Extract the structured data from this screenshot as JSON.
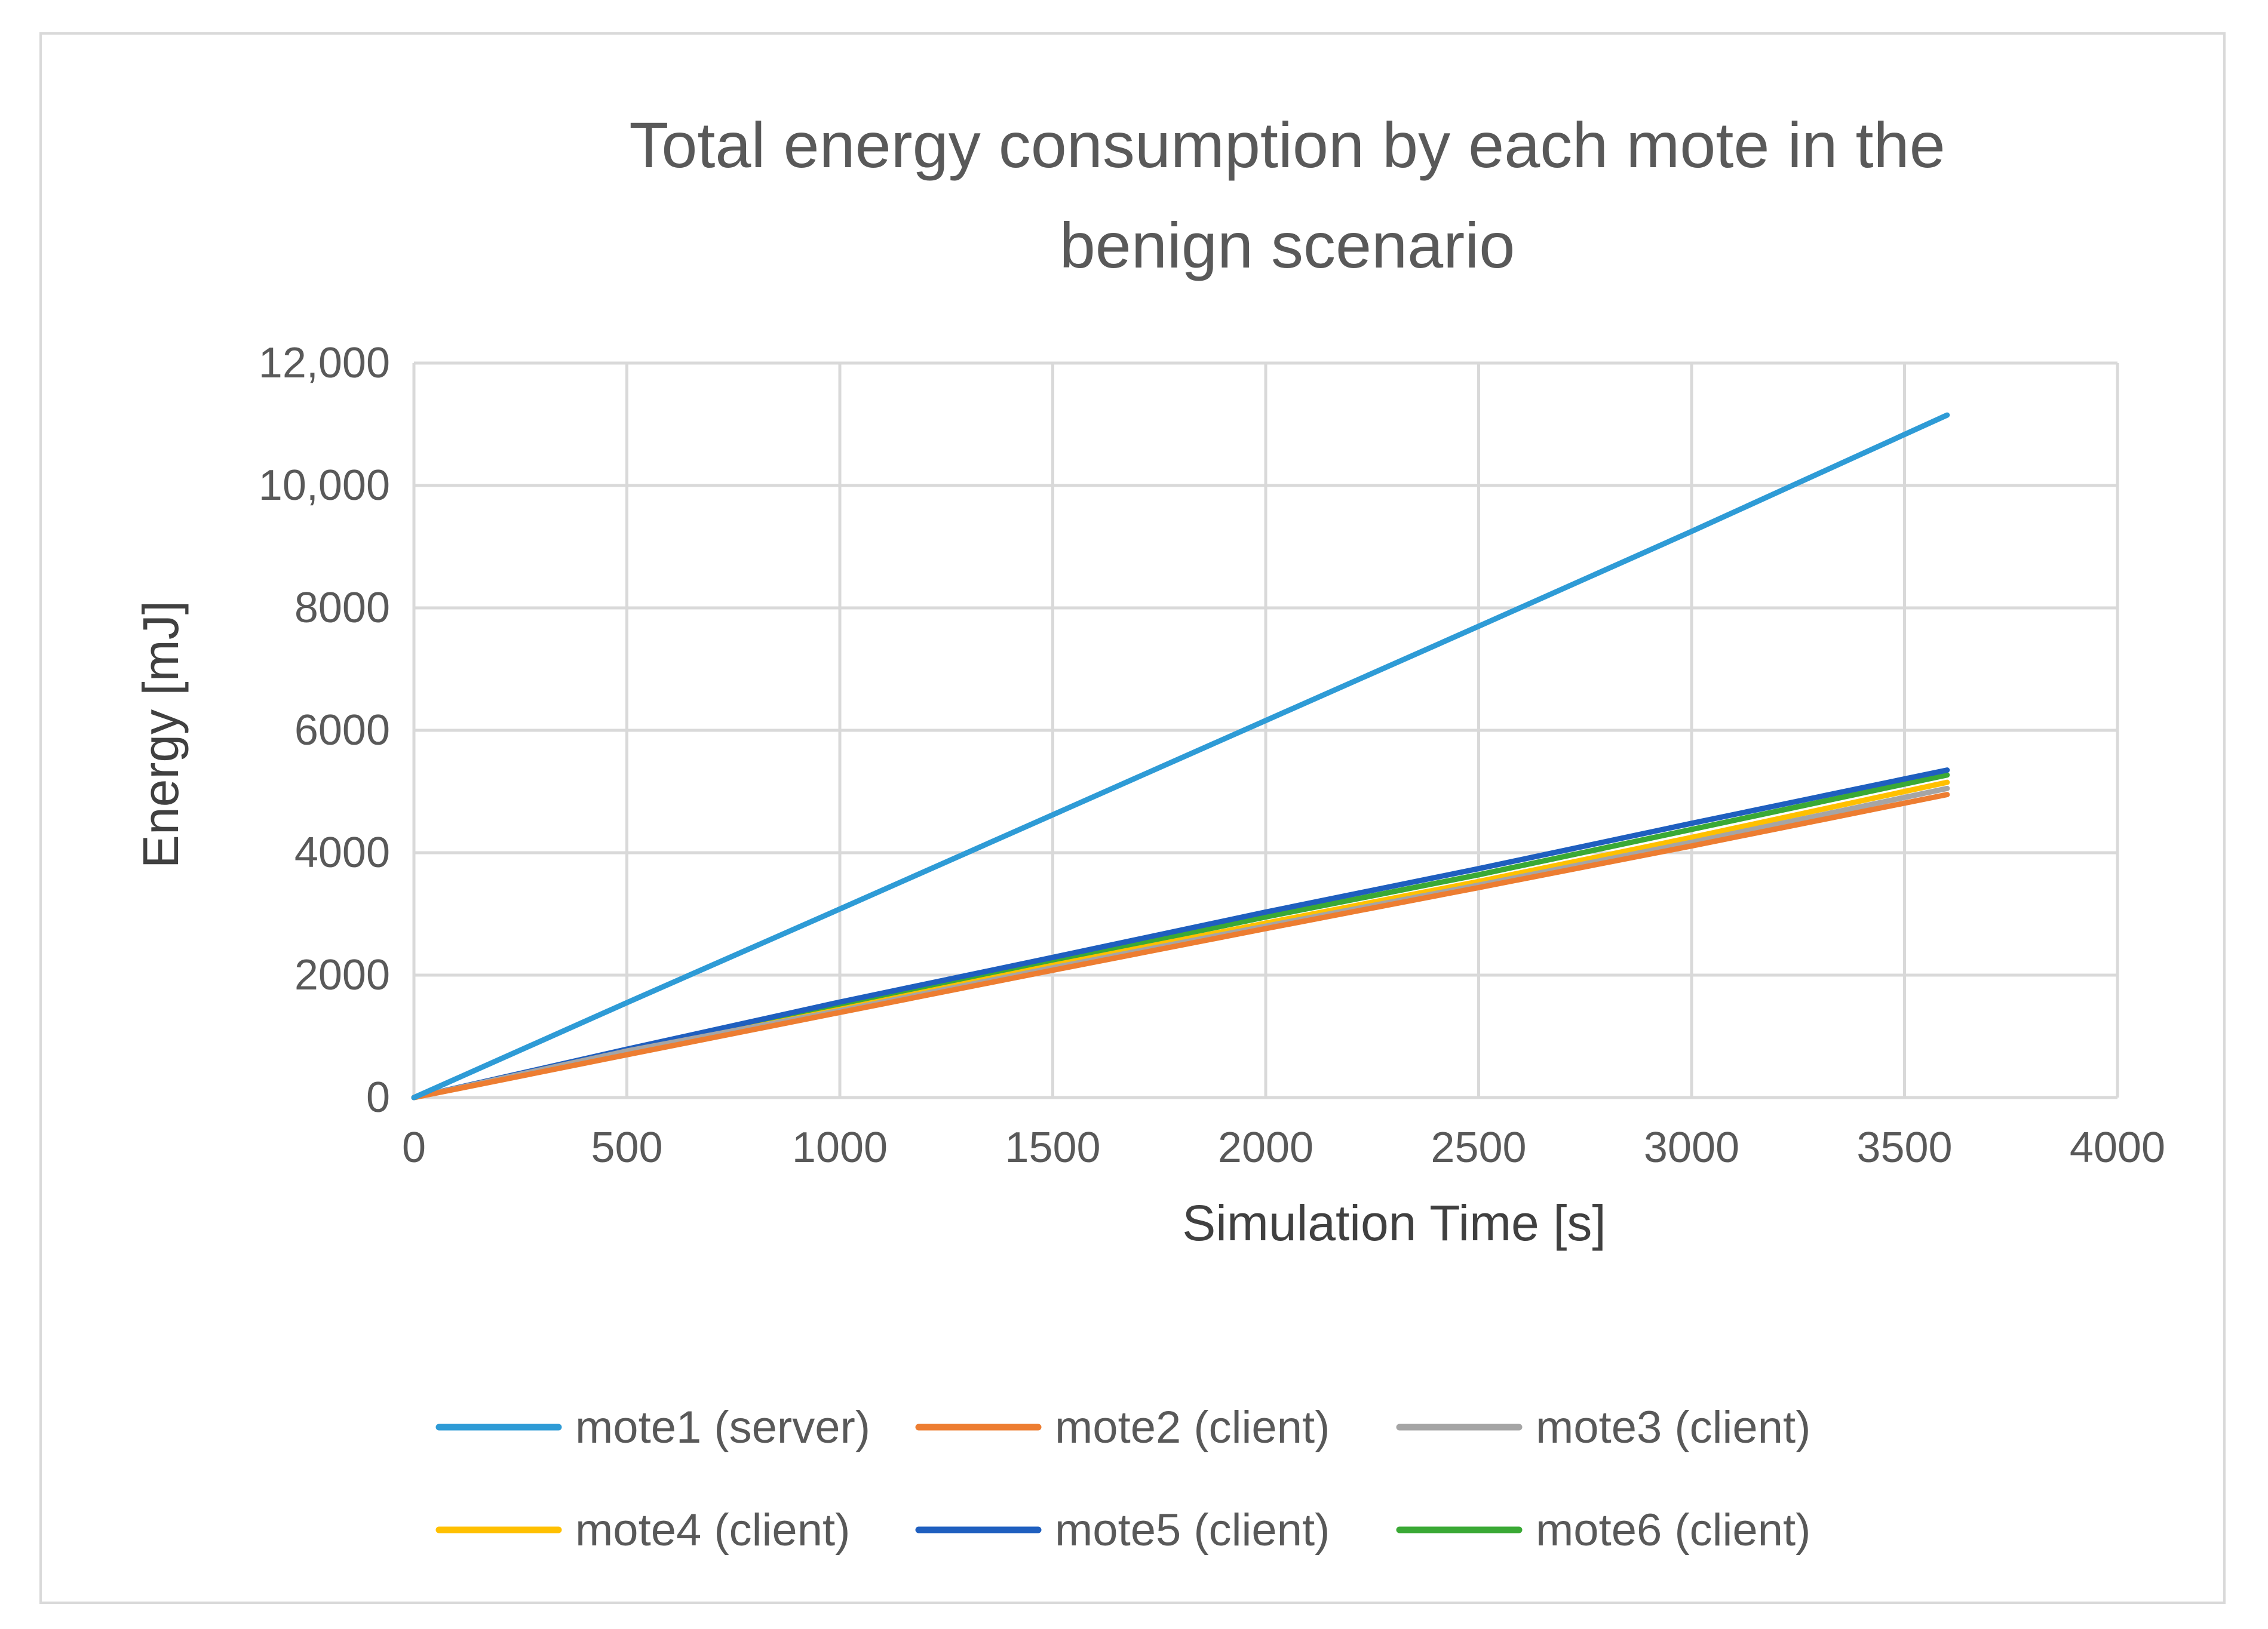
{
  "chart_data": {
    "type": "line",
    "title_lines": [
      "Total energy consumption by each mote in the",
      "benign scenario"
    ],
    "xlabel": "Simulation Time [s]",
    "ylabel": "Energy [mJ]",
    "xlim": [
      0,
      4000
    ],
    "ylim": [
      0,
      12000
    ],
    "grid": true,
    "legend_position": "bottom",
    "x_ticks": [
      0,
      500,
      1000,
      1500,
      2000,
      2500,
      3000,
      3500,
      4000
    ],
    "x_tick_labels": [
      "0",
      "500",
      "1000",
      "1500",
      "2000",
      "2500",
      "3000",
      "3500",
      "4000"
    ],
    "y_ticks": [
      0,
      2000,
      4000,
      6000,
      8000,
      10000,
      12000
    ],
    "y_tick_labels": [
      "0",
      "2000",
      "4000",
      "6000",
      "8000",
      "10,000",
      "12,000"
    ],
    "x": [
      0,
      500,
      1000,
      1500,
      2000,
      2500,
      3000,
      3600
    ],
    "series": [
      {
        "name": "mote1 (server)",
        "color": "#2e9bd6",
        "values": [
          0,
          1550,
          3080,
          4620,
          6160,
          7700,
          9250,
          11150
        ]
      },
      {
        "name": "mote2 (client)",
        "color": "#ed7d31",
        "values": [
          0,
          700,
          1390,
          2080,
          2760,
          3430,
          4110,
          4950
        ]
      },
      {
        "name": "mote3 (client)",
        "color": "#a5a5a5",
        "values": [
          0,
          760,
          1420,
          2120,
          2800,
          3470,
          4170,
          5050
        ]
      },
      {
        "name": "mote4 (client)",
        "color": "#ffc000",
        "values": [
          0,
          740,
          1440,
          2160,
          2850,
          3530,
          4250,
          5150
        ]
      },
      {
        "name": "mote5 (client)",
        "color": "#1f5fbf",
        "values": [
          0,
          790,
          1560,
          2290,
          3030,
          3740,
          4480,
          5350
        ]
      },
      {
        "name": "mote6 (client)",
        "color": "#3aa935",
        "values": [
          0,
          770,
          1500,
          2220,
          2950,
          3640,
          4380,
          5270
        ]
      }
    ]
  }
}
